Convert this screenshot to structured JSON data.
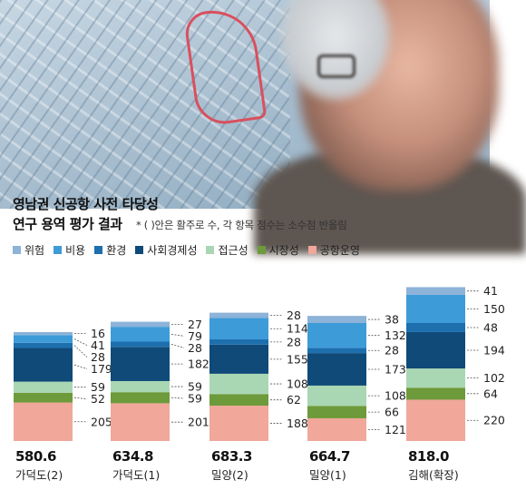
{
  "title_line1": "영남권 신공항 사전 타당성",
  "title_line2": "연구 용역 평가 결과",
  "note": "* ( )안은 활주로 수, 각 항목 점수는 소수점 반올림",
  "colors": {
    "위험": "#8db3d8",
    "비용": "#3d9bd8",
    "환경": "#1d6fae",
    "사회경제성": "#0f4a78",
    "접근성": "#a9d7b3",
    "시장성": "#6d9a3a",
    "공항운영": "#f1a79a"
  },
  "chart_data": {
    "type": "bar",
    "stacked": true,
    "categories": [
      "가덕도(2)",
      "가덕도(1)",
      "밀양(2)",
      "밀양(1)",
      "김해(확장)"
    ],
    "totals": [
      "580.6",
      "634.8",
      "683.3",
      "664.7",
      "818.0"
    ],
    "legend": [
      "위험",
      "비용",
      "환경",
      "사회경제성",
      "접근성",
      "시장성",
      "공항운영"
    ],
    "series": [
      {
        "name": "공항운영",
        "values": [
          205,
          201,
          188,
          121,
          220
        ]
      },
      {
        "name": "시장성",
        "values": [
          52,
          59,
          62,
          66,
          64
        ]
      },
      {
        "name": "접근성",
        "values": [
          59,
          59,
          108,
          108,
          102
        ]
      },
      {
        "name": "사회경제성",
        "values": [
          179,
          182,
          155,
          173,
          194
        ]
      },
      {
        "name": "환경",
        "values": [
          28,
          28,
          28,
          28,
          48
        ]
      },
      {
        "name": "비용",
        "values": [
          41,
          79,
          114,
          132,
          150
        ]
      },
      {
        "name": "위험",
        "values": [
          16,
          27,
          28,
          38,
          41
        ]
      }
    ]
  }
}
